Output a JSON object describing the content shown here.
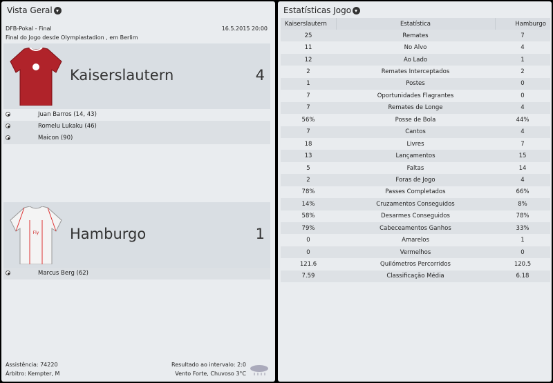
{
  "overview": {
    "title": "Vista Geral",
    "competition": "DFB-Pokal - Final",
    "datetime": "16.5.2015 20:00",
    "venue": "Final do Jogo desde Olympiastadion , em Berlim",
    "home": {
      "name": "Kaiserslautern",
      "score": "4",
      "shirt_color": "#b0232a",
      "scorers": [
        "Juan Barros (14, 43)",
        "Romelu Lukaku (46)",
        "Maicon (90)"
      ]
    },
    "away": {
      "name": "Hamburgo",
      "score": "1",
      "shirt_color": "#f2f2f2",
      "scorers": [
        "Marcus Berg (62)"
      ]
    },
    "attendance": "Assistência: 74220",
    "referee": "Árbitro: Kempter, M",
    "halftime": "Resultado ao intervalo: 2:0",
    "weather": "Vento Forte, Chuvoso 3°C",
    "weather_icon": "rain-cloud-icon"
  },
  "stats": {
    "title": "Estatísticas Jogo",
    "headers": [
      "Kaiserslautern",
      "Estatística",
      "Hamburgo"
    ],
    "rows": [
      [
        "25",
        "Remates",
        "7"
      ],
      [
        "11",
        "No Alvo",
        "4"
      ],
      [
        "12",
        "Ao Lado",
        "1"
      ],
      [
        "2",
        "Remates Interceptados",
        "2"
      ],
      [
        "1",
        "Postes",
        "0"
      ],
      [
        "7",
        "Oportunidades Flagrantes",
        "0"
      ],
      [
        "7",
        "Remates de Longe",
        "4"
      ],
      [
        "56%",
        "Posse de Bola",
        "44%"
      ],
      [
        "7",
        "Cantos",
        "4"
      ],
      [
        "18",
        "Livres",
        "7"
      ],
      [
        "13",
        "Lançamentos",
        "15"
      ],
      [
        "5",
        "Faltas",
        "14"
      ],
      [
        "2",
        "Foras de Jogo",
        "4"
      ],
      [
        "78%",
        "Passes Completados",
        "66%"
      ],
      [
        "14%",
        "Cruzamentos Conseguidos",
        "8%"
      ],
      [
        "58%",
        "Desarmes Conseguidos",
        "78%"
      ],
      [
        "79%",
        "Cabeceamentos Ganhos",
        "33%"
      ],
      [
        "0",
        "Amarelos",
        "1"
      ],
      [
        "0",
        "Vermelhos",
        "0"
      ],
      [
        "121.6",
        "Quilómetros Percorridos",
        "120.5"
      ],
      [
        "7.59",
        "Classificação Média",
        "6.18"
      ]
    ]
  }
}
